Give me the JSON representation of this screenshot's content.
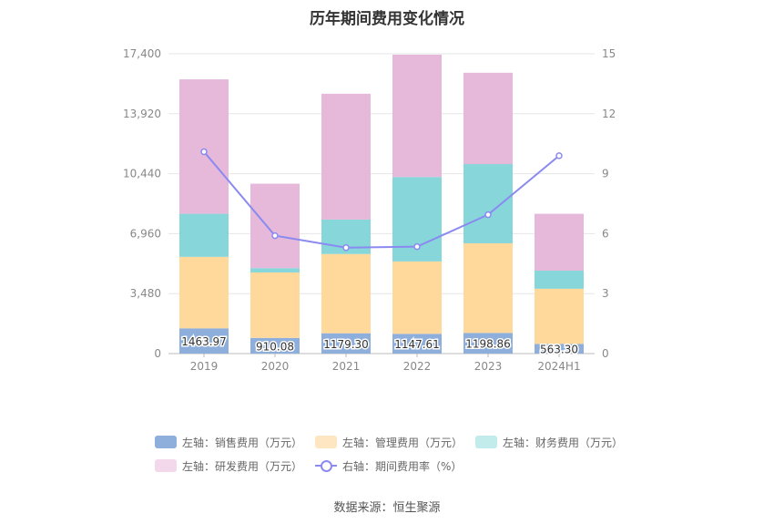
{
  "chart_data": {
    "type": "bar",
    "title": "历年期间费用变化情况",
    "categories": [
      "2019",
      "2020",
      "2021",
      "2022",
      "2023",
      "2024H1"
    ],
    "left_axis": {
      "ylim": [
        0,
        17400
      ],
      "ticks": [
        "0",
        "3,480",
        "6,960",
        "10,440",
        "13,920",
        "17,400"
      ]
    },
    "right_axis": {
      "ylim": [
        0,
        15
      ],
      "ticks": [
        "0",
        "3",
        "6",
        "9",
        "12",
        "15"
      ]
    },
    "series": [
      {
        "name": "左轴：销售费用（万元）",
        "color": "#8eaedc",
        "values": [
          1463.97,
          910.08,
          1179.3,
          1147.61,
          1198.86,
          563.3
        ],
        "labels": [
          "1463.97",
          "910.08",
          "1179.30",
          "1147.61",
          "1198.86",
          "563.30"
        ]
      },
      {
        "name": "左轴：管理费用（万元）",
        "color": "#ffd89b",
        "values": [
          4150,
          3800,
          4600,
          4200,
          5200,
          3200
        ]
      },
      {
        "name": "左轴：财务费用（万元）",
        "color": "#86d6da",
        "values": [
          2500,
          250,
          2000,
          4900,
          4600,
          1050
        ]
      },
      {
        "name": "左轴：研发费用（万元）",
        "color": "#e6b8da",
        "values": [
          7800,
          4900,
          7300,
          7100,
          5300,
          3300
        ]
      },
      {
        "name": "右轴：期间费用率（%）",
        "color": "#8a8af0",
        "type": "line",
        "axis": "right",
        "values": [
          10.1,
          5.9,
          5.3,
          5.35,
          6.95,
          9.9
        ]
      }
    ],
    "legend_position": "bottom",
    "grid": true
  },
  "legend": {
    "row1": [
      "左轴：销售费用（万元）",
      "左轴：管理费用（万元）",
      "左轴：财务费用（万元）"
    ],
    "row2": [
      "左轴：研发费用（万元）",
      "右轴：期间费用率（%）"
    ]
  },
  "colors": {
    "sales": "#8eaedc",
    "admin": "#ffd89b",
    "finance": "#86d6da",
    "rd": "#e6b8da",
    "rate": "#8a8af0",
    "legend_sales": "#8eaedc",
    "legend_admin": "#ffe6c2",
    "legend_finance": "#c2ecec",
    "legend_rd": "#f3d8ec"
  },
  "source": "数据来源：恒生聚源"
}
